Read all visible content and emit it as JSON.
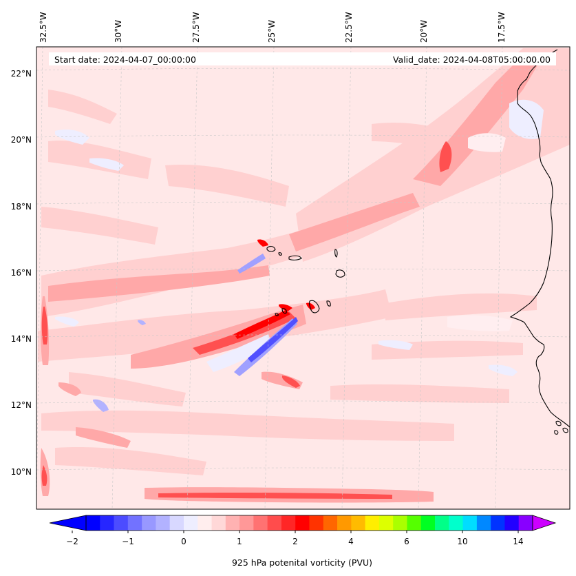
{
  "header": {
    "start_date": "Start date: 2024-04-07_00:00:00",
    "valid_date": "Valid_date: 2024-04-08T05:00:00.00"
  },
  "lon_labels": [
    "32.5°W",
    "30°W",
    "27.5°W",
    "25°W",
    "22.5°W",
    "20°W",
    "17.5°W"
  ],
  "lat_labels": [
    "22°N",
    "20°N",
    "18°N",
    "16°N",
    "14°N",
    "12°N",
    "10°N"
  ],
  "colorbar": {
    "label": "925 hPa potenital vorticity (PVU)",
    "tick_labels": [
      "−2",
      "−1",
      "0",
      "1",
      "2",
      "4",
      "6",
      "10",
      "14"
    ],
    "colors": [
      "#0000ff",
      "#2626ff",
      "#4c4cff",
      "#7272ff",
      "#9898ff",
      "#b2b2ff",
      "#d8d8ff",
      "#eeeeff",
      "#ffeeee",
      "#ffd8d8",
      "#ffb2b2",
      "#ff9898",
      "#ff7272",
      "#ff4c4c",
      "#ff2626",
      "#ff0000",
      "#ff3300",
      "#ff6600",
      "#ff9900",
      "#ffbb00",
      "#ffee00",
      "#ddff00",
      "#aaff00",
      "#55ff00",
      "#00ff22",
      "#00ff88",
      "#00ffcc",
      "#00ddff",
      "#0088ff",
      "#0033ff",
      "#2200ff",
      "#8800ff"
    ],
    "extend_low_color": "#0000ff",
    "extend_high_color": "#cc00ff"
  },
  "map_colors": {
    "background": "#ffe8e8",
    "light_red": "#ffd0d0",
    "mid_red": "#ffa8a8",
    "strong_red": "#ff5050",
    "max_red": "#ff0000",
    "light_blue": "#eeeeff",
    "mid_blue": "#a0a0ff",
    "strong_blue": "#5050ff",
    "coast": "#000000"
  }
}
